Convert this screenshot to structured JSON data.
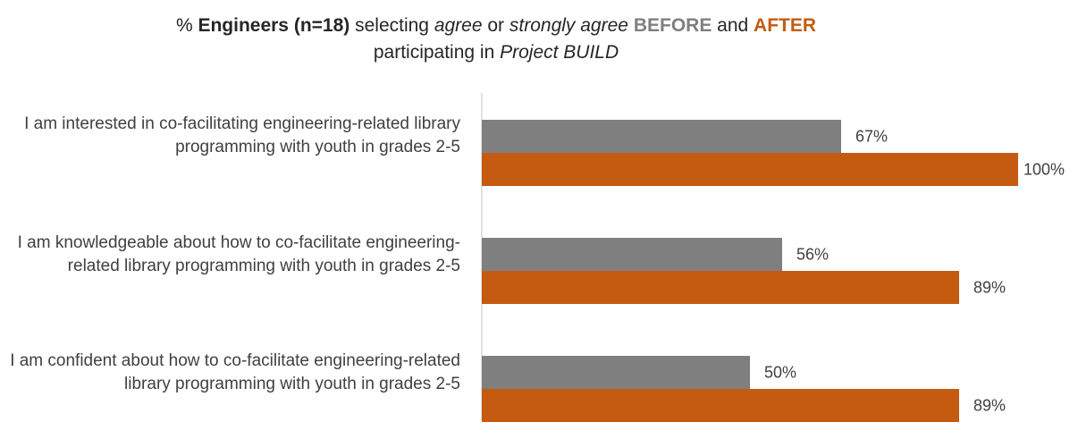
{
  "title": {
    "prefix": "% ",
    "group": "Engineers (n=18)",
    "mid1": " selecting ",
    "agree": "agree",
    "or": " or ",
    "strongly": "strongly agree",
    "space": " ",
    "before": "BEFORE",
    "and": " and ",
    "after": "AFTER",
    "line2a": "participating in ",
    "project": "Project BUILD"
  },
  "colors": {
    "before": "#7f7f7f",
    "after": "#c55a11",
    "axis": "#d9d9d9"
  },
  "chart_data": {
    "type": "bar",
    "orientation": "horizontal",
    "categories": [
      "I am interested in co-facilitating engineering-related library programming with youth in grades 2-5",
      "I am knowledgeable about how to co-facilitate engineering-related library programming with youth in grades 2-5",
      "I am confident about how to co-facilitate engineering-related library programming with youth in grades 2-5"
    ],
    "series": [
      {
        "name": "BEFORE",
        "values": [
          67,
          56,
          50
        ],
        "labels": [
          "67%",
          "56%",
          "50%"
        ]
      },
      {
        "name": "AFTER",
        "values": [
          100,
          89,
          89
        ],
        "labels": [
          "100%",
          "89%",
          "89%"
        ]
      }
    ],
    "xlim": [
      0,
      100
    ],
    "grid": false
  }
}
